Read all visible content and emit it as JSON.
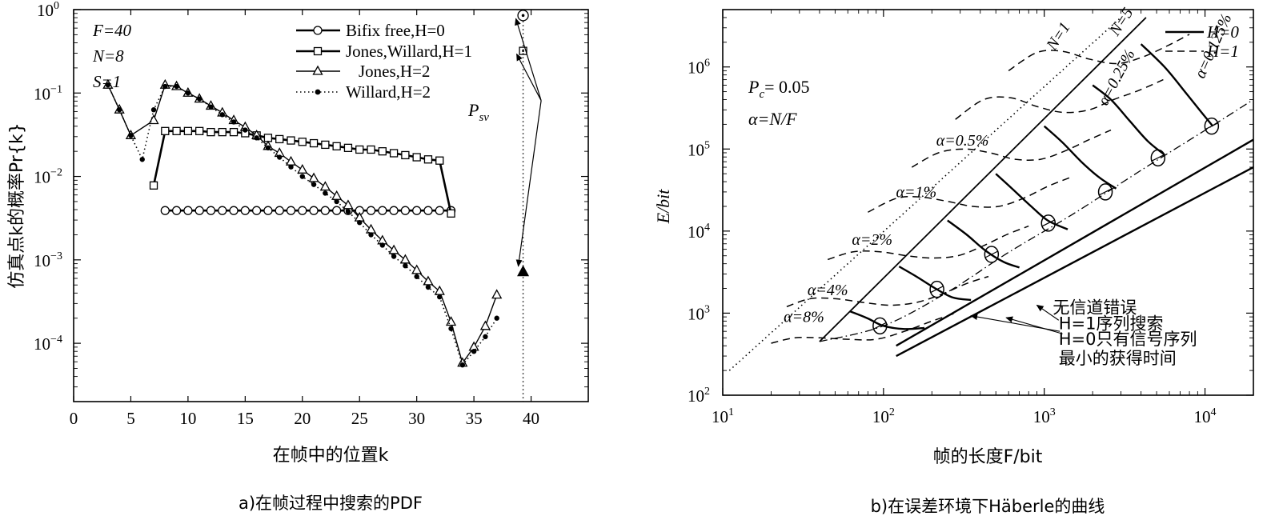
{
  "charts": [
    {
      "id": "a",
      "type": "line",
      "caption": "a)在帧过程中搜索的PDF",
      "xlabel": "在帧中的位置k",
      "ylabel": "仿真点k的概率Pr{k}",
      "xlim": [
        0,
        45
      ],
      "xticks": [
        0,
        5,
        10,
        15,
        20,
        25,
        30,
        35,
        40
      ],
      "ylog": true,
      "ylim": [
        2e-05,
        1
      ],
      "yticks": [
        {
          "v": 0.0001,
          "label": "10",
          "exp": "−4"
        },
        {
          "v": 0.001,
          "label": "10",
          "exp": "−3"
        },
        {
          "v": 0.01,
          "label": "10",
          "exp": "−2"
        },
        {
          "v": 0.1,
          "label": "10",
          "exp": "−1"
        },
        {
          "v": 1,
          "label": "10",
          "exp": "0"
        }
      ],
      "params": [
        "F=40",
        "N=8",
        "S=1"
      ],
      "annotation": {
        "text": "P",
        "sub": "sv",
        "x": 38.5,
        "y": 0.05
      },
      "legend_position": "top-right",
      "series": [
        {
          "name": "Bifix free,H=0",
          "style": "solid",
          "marker": "circle",
          "x": [
            8,
            9,
            10,
            11,
            12,
            13,
            14,
            15,
            16,
            17,
            18,
            19,
            20,
            21,
            22,
            23,
            24,
            25,
            26,
            27,
            28,
            29,
            30,
            31,
            32,
            33
          ],
          "y": [
            0.0039,
            0.0039,
            0.0039,
            0.0039,
            0.0039,
            0.0039,
            0.0039,
            0.0039,
            0.0039,
            0.0039,
            0.0039,
            0.0039,
            0.0039,
            0.0039,
            0.0039,
            0.0039,
            0.0039,
            0.0039,
            0.0039,
            0.0039,
            0.0039,
            0.0039,
            0.0039,
            0.0039,
            0.0039,
            0.0039
          ],
          "outlier": {
            "x": 39.3,
            "y": 0.85
          }
        },
        {
          "name": "Jones,Willard,H=1",
          "style": "solid",
          "marker": "square",
          "x": [
            7,
            8,
            9,
            10,
            11,
            12,
            13,
            14,
            15,
            16,
            17,
            18,
            19,
            20,
            21,
            22,
            23,
            24,
            25,
            26,
            27,
            28,
            29,
            30,
            31,
            32,
            33
          ],
          "y": [
            0.0078,
            0.035,
            0.035,
            0.035,
            0.035,
            0.034,
            0.034,
            0.034,
            0.033,
            0.031,
            0.029,
            0.028,
            0.027,
            0.026,
            0.025,
            0.024,
            0.023,
            0.022,
            0.021,
            0.021,
            0.02,
            0.019,
            0.018,
            0.017,
            0.016,
            0.0155,
            0.0036
          ],
          "outlier": {
            "x": 39.3,
            "y": 0.32
          }
        },
        {
          "name": "Jones,H=2",
          "style": "solid",
          "marker": "triangle",
          "x": [
            3,
            4,
            5,
            7,
            8,
            9,
            10,
            11,
            12,
            13,
            14,
            15,
            16,
            17,
            18,
            19,
            20,
            21,
            22,
            23,
            24,
            25,
            26,
            27,
            28,
            29,
            30,
            31,
            32,
            33,
            34,
            35,
            36,
            37
          ],
          "y": [
            0.125,
            0.063,
            0.031,
            0.047,
            0.125,
            0.12,
            0.1,
            0.085,
            0.07,
            0.058,
            0.047,
            0.039,
            0.031,
            0.023,
            0.019,
            0.015,
            0.012,
            0.0095,
            0.0075,
            0.0058,
            0.0045,
            0.0032,
            0.0023,
            0.0017,
            0.0013,
            0.001,
            0.00075,
            0.00055,
            0.00042,
            0.00018,
            5.8e-05,
            9e-05,
            0.00016,
            0.00038
          ],
          "outlier": {
            "x": 39.3,
            "y": 0.00072
          }
        },
        {
          "name": "Willard,H=2",
          "style": "dotted",
          "marker": "dot",
          "x": [
            3,
            4,
            5,
            6,
            7,
            8,
            9,
            10,
            11,
            12,
            13,
            14,
            15,
            16,
            17,
            18,
            19,
            20,
            21,
            22,
            23,
            24,
            25,
            26,
            27,
            28,
            29,
            30,
            31,
            32,
            33,
            34,
            35,
            36,
            37
          ],
          "y": [
            0.125,
            0.063,
            0.031,
            0.016,
            0.063,
            0.12,
            0.12,
            0.1,
            0.085,
            0.068,
            0.055,
            0.045,
            0.036,
            0.029,
            0.022,
            0.017,
            0.013,
            0.01,
            0.008,
            0.0063,
            0.005,
            0.0038,
            0.0028,
            0.002,
            0.0015,
            0.0011,
            0.00085,
            0.00063,
            0.00047,
            0.00036,
            0.00015,
            5.5e-05,
            8e-05,
            0.00012,
            0.0002
          ],
          "outlier": {
            "x": 39.3,
            "y": 0.00072
          }
        }
      ]
    },
    {
      "id": "b",
      "type": "line",
      "caption": "b)在误差环境下Häberle的曲线",
      "xlabel": "帧的长度F/bit",
      "ylabel": "E/bit",
      "xlog": true,
      "ylog": true,
      "xlim": [
        10,
        20000
      ],
      "ylim": [
        100,
        5000000
      ],
      "xticks": [
        {
          "v": 10,
          "label": "10",
          "exp": "1"
        },
        {
          "v": 100,
          "label": "10",
          "exp": "2"
        },
        {
          "v": 1000,
          "label": "10",
          "exp": "3"
        },
        {
          "v": 10000,
          "label": "10",
          "exp": "4"
        }
      ],
      "yticks": [
        {
          "v": 100,
          "label": "10",
          "exp": "2"
        },
        {
          "v": 1000,
          "label": "10",
          "exp": "3"
        },
        {
          "v": 10000,
          "label": "10",
          "exp": "4"
        },
        {
          "v": 100000,
          "label": "10",
          "exp": "5"
        },
        {
          "v": 1000000,
          "label": "10",
          "exp": "6"
        }
      ],
      "params": {
        "pc": "P",
        "pc_sub": "c",
        "pc_value": "= 0.05",
        "alpha_def": "α=N/F"
      },
      "legend_position": "top-right",
      "legend": [
        {
          "label": "H=0",
          "style": "solid"
        },
        {
          "label": "H=1",
          "style": "dashed"
        }
      ],
      "n_lines": [
        {
          "label": "N=1",
          "style": "dotted",
          "x": [
            11,
            3000
          ],
          "y": [
            200,
            4000000
          ],
          "label_at": [
            1300,
            2200000
          ]
        },
        {
          "label": "N=5",
          "style": "solid",
          "x": [
            40,
            4300
          ],
          "y": [
            450,
            4000000
          ],
          "label_at": [
            3200,
            3300000
          ]
        }
      ],
      "alpha_labels": [
        {
          "text": "α=8%",
          "x": 32,
          "y": 780
        },
        {
          "text": "α=4%",
          "x": 45,
          "y": 1650
        },
        {
          "text": "α=2%",
          "x": 85,
          "y": 6800
        },
        {
          "text": "α=1%",
          "x": 160,
          "y": 26000
        },
        {
          "text": "α=0.5%",
          "x": 310,
          "y": 110000
        },
        {
          "text": "α=0.25%",
          "x": 3000,
          "y": 700000
        },
        {
          "text": "α=0.125%",
          "x": 12000,
          "y": 1700000
        }
      ],
      "h0_curves": [
        {
          "x": [
            62,
            80,
            100,
            135,
            180
          ],
          "y": [
            1050,
            860,
            700,
            640,
            660
          ]
        },
        {
          "x": [
            125,
            160,
            210,
            270,
            350
          ],
          "y": [
            3700,
            2800,
            2000,
            1550,
            1450
          ]
        },
        {
          "x": [
            250,
            330,
            430,
            560,
            700
          ],
          "y": [
            13500,
            9000,
            5800,
            4200,
            3600
          ]
        },
        {
          "x": [
            500,
            640,
            830,
            1050,
            1400
          ],
          "y": [
            50000,
            32000,
            20000,
            13500,
            10500
          ]
        },
        {
          "x": [
            1000,
            1300,
            1700,
            2200,
            2800
          ],
          "y": [
            190000,
            120000,
            70000,
            45000,
            33000
          ]
        },
        {
          "x": [
            2000,
            2600,
            3400,
            4400,
            5600
          ],
          "y": [
            600000,
            400000,
            220000,
            125000,
            85000
          ]
        },
        {
          "x": [
            4000,
            5600,
            7500,
            9500,
            11200
          ],
          "y": [
            1900000,
            1000000,
            500000,
            280000,
            190000
          ]
        }
      ],
      "h1_curves": [
        {
          "x": [
            20,
            28,
            40,
            60,
            90,
            135,
            200,
            280
          ],
          "y": [
            430,
            500,
            500,
            480,
            480,
            600,
            800,
            1000
          ]
        },
        {
          "x": [
            25,
            35,
            50,
            75,
            110,
            160,
            230,
            330,
            450
          ],
          "y": [
            1200,
            1500,
            1500,
            1350,
            1250,
            1350,
            1700,
            2300,
            2800
          ]
        },
        {
          "x": [
            45,
            65,
            95,
            140,
            200,
            290,
            410,
            580,
            800
          ],
          "y": [
            4500,
            5600,
            5600,
            5000,
            4700,
            5000,
            6500,
            9000,
            11500
          ]
        },
        {
          "x": [
            80,
            120,
            170,
            250,
            360,
            520,
            740,
            1050,
            1450
          ],
          "y": [
            17000,
            25000,
            26000,
            23000,
            20000,
            20000,
            25000,
            35000,
            45000
          ]
        },
        {
          "x": [
            150,
            220,
            320,
            460,
            660,
            950,
            1350,
            1900,
            2600
          ],
          "y": [
            60000,
            90000,
            100000,
            90000,
            75000,
            75000,
            95000,
            130000,
            170000
          ]
        },
        {
          "x": [
            280,
            420,
            620,
            900,
            1300,
            1900,
            2700,
            3900,
            5500
          ],
          "y": [
            230000,
            400000,
            420000,
            330000,
            280000,
            300000,
            400000,
            520000,
            700000
          ]
        },
        {
          "x": [
            600,
            900,
            1300,
            1900,
            2800,
            4000,
            5800,
            8000
          ],
          "y": [
            900000,
            1500000,
            1550000,
            1250000,
            1100000,
            1300000,
            1800000,
            2500000
          ]
        }
      ],
      "h1_dashdot": {
        "x": [
          40,
          100,
          250,
          600,
          1500,
          4000,
          11000,
          20000
        ],
        "y": [
          450,
          700,
          1800,
          5500,
          16000,
          55000,
          190000,
          400000
        ]
      },
      "circles": [
        {
          "x": 95,
          "y": 700
        },
        {
          "x": 215,
          "y": 1950
        },
        {
          "x": 470,
          "y": 5200
        },
        {
          "x": 1060,
          "y": 12500
        },
        {
          "x": 2400,
          "y": 30000
        },
        {
          "x": 5100,
          "y": 78000
        },
        {
          "x": 11000,
          "y": 190000
        }
      ],
      "bound_lines": [
        {
          "x": [
            120,
            20000
          ],
          "y": [
            400,
            130000
          ]
        },
        {
          "x": [
            120,
            20000
          ],
          "y": [
            300,
            60000
          ]
        }
      ],
      "notes": [
        {
          "text": "无信道错误",
          "pos": [
            1130,
            1000
          ]
        },
        {
          "text": "H=1序列搜索",
          "pos": [
            1230,
            640
          ]
        },
        {
          "text": "H=0只有信号序列",
          "pos": [
            1230,
            410
          ]
        },
        {
          "text": "最小的获得时间",
          "pos": [
            1230,
            240
          ]
        }
      ]
    }
  ]
}
